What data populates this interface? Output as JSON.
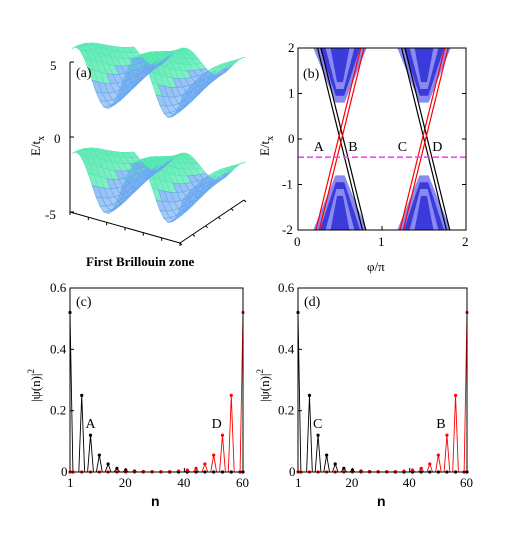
{
  "chart_data": [
    {
      "type": "surface",
      "panel": "(a)",
      "xlabel": "First Brillouin zone",
      "ylabel": "E/t_x",
      "ylabel_main": "E/t",
      "ylabel_sub": "x",
      "zticks": [
        "5",
        "0",
        "-5"
      ],
      "zlim": [
        -5,
        5
      ],
      "colors": [
        "#55e8b0",
        "#6aa8f0"
      ]
    },
    {
      "type": "line",
      "panel": "(b)",
      "xlabel": "φ/π",
      "ylabel": "E/t_x",
      "ylabel_main": "E/t",
      "ylabel_sub": "x",
      "xlim": [
        0,
        2
      ],
      "ylim": [
        -2,
        2
      ],
      "xticks": [
        "0",
        "1",
        "2"
      ],
      "yticks": [
        "2",
        "1",
        "0",
        "-1",
        "-2"
      ],
      "dashed_line_y": -0.4,
      "crossing_points": [
        {
          "label": "A",
          "x": 0.45,
          "y": -0.15
        },
        {
          "label": "B",
          "x": 0.55,
          "y": -0.15
        },
        {
          "label": "C",
          "x": 1.45,
          "y": -0.15
        },
        {
          "label": "D",
          "x": 1.55,
          "y": -0.15
        }
      ],
      "colors": {
        "band_dark": "#3b3bdc",
        "band_light": "#8a8af0",
        "edge_black": "#000000",
        "edge_red": "#ff0000",
        "dashed": "#ff44ff"
      }
    },
    {
      "type": "line",
      "panel": "(c)",
      "xlabel": "n",
      "ylabel": "|ψ(n)|²",
      "ylabel_main": "|ψ(n)|",
      "ylabel_sup": "2",
      "xlim": [
        1,
        60
      ],
      "ylim": [
        0,
        0.6
      ],
      "xticks": [
        "1",
        "20",
        "40",
        "60"
      ],
      "yticks": [
        "0.6",
        "0.4",
        "0.2",
        "0"
      ],
      "annotations": [
        {
          "text": "A",
          "x": 8,
          "y": 0.16
        },
        {
          "text": "D",
          "x": 51,
          "y": 0.16
        }
      ],
      "series": [
        {
          "color": "#000000",
          "x": [
            1,
            2,
            5,
            8,
            11,
            14,
            17,
            20,
            23,
            26,
            29,
            32,
            35,
            38,
            41,
            44,
            47,
            50,
            53,
            56,
            59,
            60
          ],
          "y": [
            0.52,
            0.0,
            0.25,
            0.12,
            0.055,
            0.026,
            0.012,
            0.006,
            0.003,
            0.0015,
            0.0007,
            0.0003,
            0.0,
            0.0,
            0.0,
            0.0,
            0.0,
            0.0,
            0.0,
            0.0,
            0.0,
            0.0
          ]
        },
        {
          "color": "#ff0000",
          "x": [
            1,
            2,
            5,
            8,
            11,
            14,
            17,
            20,
            23,
            26,
            29,
            32,
            35,
            38,
            41,
            44,
            47,
            50,
            53,
            56,
            59,
            60
          ],
          "y": [
            0.0,
            0.0,
            0.0,
            0.0,
            0.0,
            0.0,
            0.0,
            0.0,
            0.0,
            0.0,
            0.0003,
            0.0007,
            0.0015,
            0.003,
            0.006,
            0.012,
            0.026,
            0.055,
            0.12,
            0.25,
            0.0,
            0.52
          ]
        }
      ]
    },
    {
      "type": "line",
      "panel": "(d)",
      "xlabel": "n",
      "ylabel": "|ψ(n)|²",
      "ylabel_main": "|ψ(n)|",
      "ylabel_sup": "2",
      "xlim": [
        1,
        60
      ],
      "ylim": [
        0,
        0.6
      ],
      "xticks": [
        "1",
        "20",
        "40",
        "60"
      ],
      "yticks": [
        "0.6",
        "0.4",
        "0.2",
        "0"
      ],
      "annotations": [
        {
          "text": "C",
          "x": 8,
          "y": 0.16
        },
        {
          "text": "B",
          "x": 51,
          "y": 0.16
        }
      ],
      "series": [
        {
          "color": "#000000",
          "x": [
            1,
            2,
            5,
            8,
            11,
            14,
            17,
            20,
            23,
            26,
            29,
            32,
            35,
            38,
            41,
            44,
            47,
            50,
            53,
            56,
            59,
            60
          ],
          "y": [
            0.52,
            0.0,
            0.25,
            0.12,
            0.055,
            0.026,
            0.012,
            0.006,
            0.003,
            0.0015,
            0.0007,
            0.0003,
            0.0,
            0.0,
            0.0,
            0.0,
            0.0,
            0.0,
            0.0,
            0.0,
            0.0,
            0.0
          ]
        },
        {
          "color": "#ff0000",
          "x": [
            1,
            2,
            5,
            8,
            11,
            14,
            17,
            20,
            23,
            26,
            29,
            32,
            35,
            38,
            41,
            44,
            47,
            50,
            53,
            56,
            59,
            60
          ],
          "y": [
            0.0,
            0.0,
            0.0,
            0.0,
            0.0,
            0.0,
            0.0,
            0.0,
            0.0,
            0.0,
            0.0003,
            0.0007,
            0.0015,
            0.003,
            0.006,
            0.012,
            0.026,
            0.055,
            0.12,
            0.25,
            0.0,
            0.52
          ]
        }
      ]
    }
  ]
}
